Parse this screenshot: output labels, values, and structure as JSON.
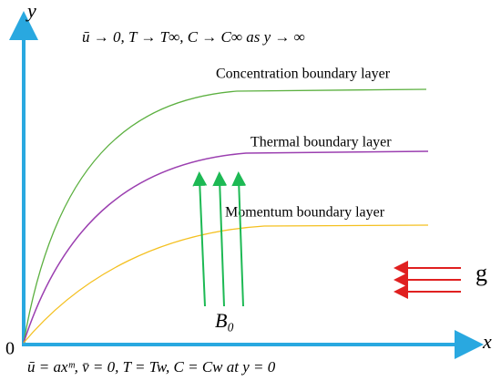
{
  "axes": {
    "y_label": "y",
    "x_label": "x",
    "origin": "0"
  },
  "conditions": {
    "far_field": "ū → 0, T → T∞, C → C∞ as y → ∞",
    "wall": "ū = axᵐ, v̄ = 0, T = Tw, C = Cw at y = 0"
  },
  "layers": {
    "concentration": "Concentration boundary layer",
    "thermal": "Thermal boundary layer",
    "momentum": "Momentum boundary layer"
  },
  "field": {
    "magnetic": "B₀",
    "gravity": "g"
  }
}
